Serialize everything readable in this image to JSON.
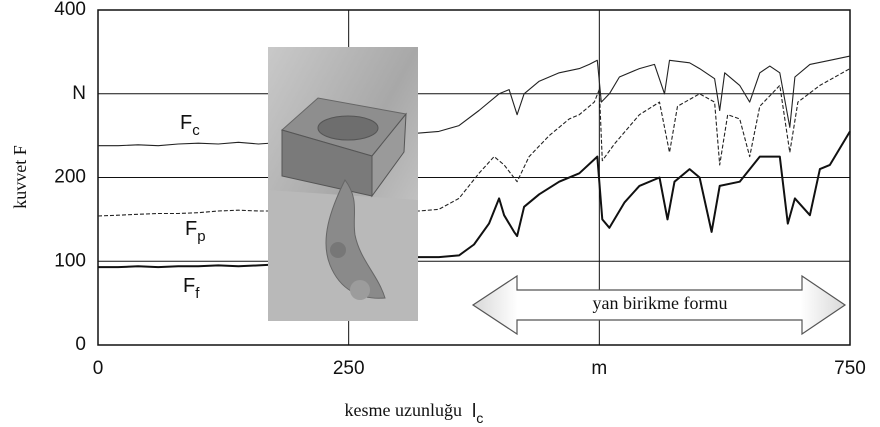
{
  "chart_data": {
    "type": "line",
    "ylabel": "kuvvet F",
    "xlabel": "kesme uzunluğu",
    "xlabel_symbol": "lc",
    "annotation": "yan birikme formu",
    "xlim": [
      0,
      750
    ],
    "ylim": [
      0,
      400
    ],
    "xticks": [
      0,
      250,
      {
        "value": 500,
        "label": "m"
      },
      750
    ],
    "yticks": [
      0,
      100,
      200,
      {
        "value": 300,
        "label": "N"
      },
      400
    ],
    "grid": true,
    "series": [
      {
        "name": "Fc",
        "color": "#222222",
        "style": "solid",
        "x": [
          0,
          20,
          40,
          60,
          80,
          100,
          120,
          140,
          160,
          320,
          340,
          360,
          380,
          400,
          410,
          418,
          425,
          440,
          460,
          480,
          490,
          498,
          502,
          510,
          520,
          540,
          555,
          565,
          570,
          590,
          600,
          615,
          620,
          625,
          640,
          650,
          660,
          670,
          680,
          690,
          695,
          710,
          730,
          750
        ],
        "values": [
          238,
          238,
          239,
          238,
          240,
          241,
          240,
          242,
          240,
          253,
          255,
          262,
          280,
          300,
          305,
          275,
          300,
          315,
          325,
          330,
          335,
          340,
          290,
          300,
          320,
          330,
          335,
          300,
          340,
          337,
          330,
          318,
          280,
          325,
          310,
          290,
          325,
          333,
          325,
          260,
          320,
          335,
          340,
          345
        ]
      },
      {
        "name": "Fp",
        "color": "#222222",
        "style": "dashed",
        "x": [
          0,
          20,
          40,
          60,
          80,
          100,
          120,
          140,
          160,
          320,
          340,
          360,
          380,
          395,
          405,
          418,
          430,
          450,
          470,
          480,
          495,
          500,
          503,
          515,
          540,
          560,
          570,
          578,
          600,
          615,
          620,
          628,
          640,
          650,
          660,
          680,
          690,
          698,
          720,
          750
        ],
        "values": [
          154,
          155,
          156,
          157,
          157,
          158,
          160,
          161,
          160,
          160,
          162,
          175,
          205,
          225,
          215,
          195,
          225,
          250,
          270,
          275,
          290,
          305,
          220,
          240,
          275,
          290,
          230,
          285,
          300,
          290,
          215,
          275,
          270,
          225,
          285,
          310,
          230,
          290,
          310,
          330
        ]
      },
      {
        "name": "Ff",
        "color": "#111111",
        "style": "thick",
        "x": [
          0,
          20,
          40,
          60,
          80,
          100,
          120,
          140,
          160,
          320,
          340,
          360,
          375,
          390,
          400,
          405,
          415,
          418,
          425,
          440,
          460,
          480,
          498,
          503,
          510,
          525,
          540,
          560,
          568,
          575,
          590,
          600,
          612,
          620,
          640,
          660,
          680,
          688,
          695,
          710,
          720,
          730,
          750
        ],
        "values": [
          93,
          93,
          94,
          93,
          94,
          94,
          95,
          94,
          95,
          105,
          105,
          107,
          120,
          145,
          175,
          155,
          135,
          130,
          165,
          180,
          195,
          205,
          225,
          150,
          140,
          170,
          190,
          200,
          150,
          195,
          210,
          200,
          135,
          190,
          195,
          225,
          225,
          145,
          175,
          155,
          210,
          215,
          255
        ]
      }
    ]
  }
}
